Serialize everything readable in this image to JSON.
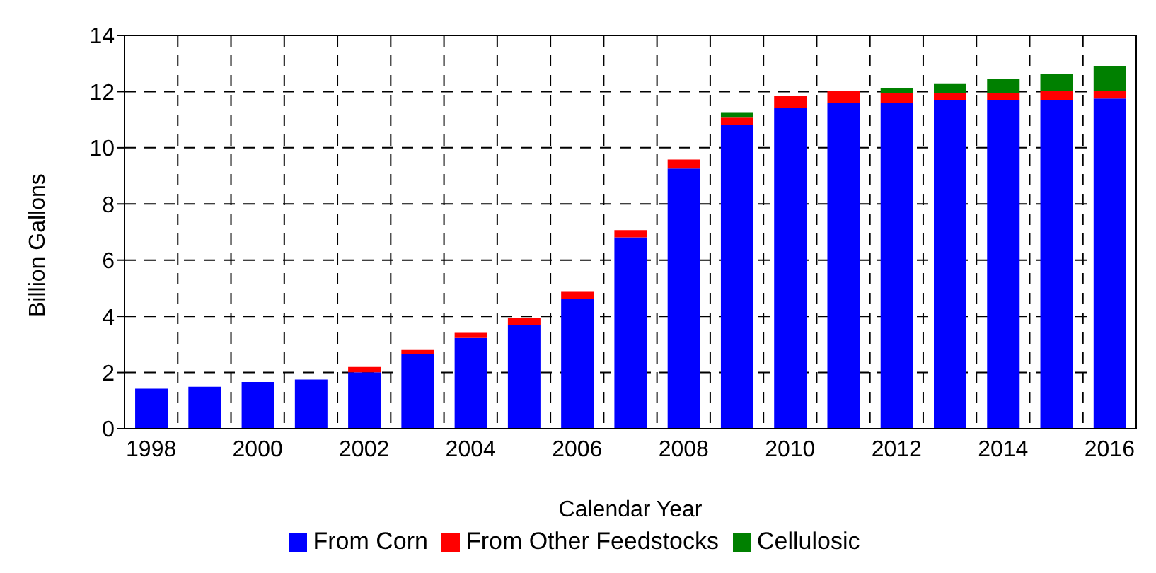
{
  "chart_data": {
    "type": "bar",
    "stacked": true,
    "xlabel": "Calendar Year",
    "ylabel": "Billion Gallons",
    "categories": [
      "1998",
      null,
      "2000",
      null,
      "2002",
      null,
      "2004",
      null,
      "2006",
      null,
      "2008",
      null,
      "2010",
      null,
      "2012",
      null,
      "2014",
      null,
      "2016"
    ],
    "series": [
      {
        "name": "From Corn",
        "color": "#0000ff",
        "values": [
          1.42,
          1.49,
          1.66,
          1.75,
          2.01,
          2.66,
          3.23,
          3.69,
          4.63,
          6.81,
          9.26,
          10.81,
          11.42,
          11.61,
          11.61,
          11.7,
          11.7,
          11.7,
          11.75
        ]
      },
      {
        "name": "From Other Feedstocks",
        "color": "#ff0000",
        "values": [
          null,
          null,
          null,
          null,
          0.19,
          0.14,
          0.18,
          0.24,
          0.24,
          0.26,
          0.32,
          0.26,
          0.43,
          0.4,
          0.33,
          0.24,
          0.24,
          0.33,
          0.28
        ]
      },
      {
        "name": "Cellulosic",
        "color": "#008000",
        "values": [
          null,
          null,
          null,
          null,
          null,
          null,
          null,
          null,
          null,
          null,
          null,
          0.17,
          null,
          null,
          0.18,
          0.33,
          0.51,
          0.61,
          0.87
        ]
      }
    ],
    "ylim": [
      0,
      14
    ],
    "yticks": [
      0,
      2,
      4,
      6,
      8,
      10,
      12,
      14
    ],
    "grid": true,
    "legend": "bottom"
  }
}
